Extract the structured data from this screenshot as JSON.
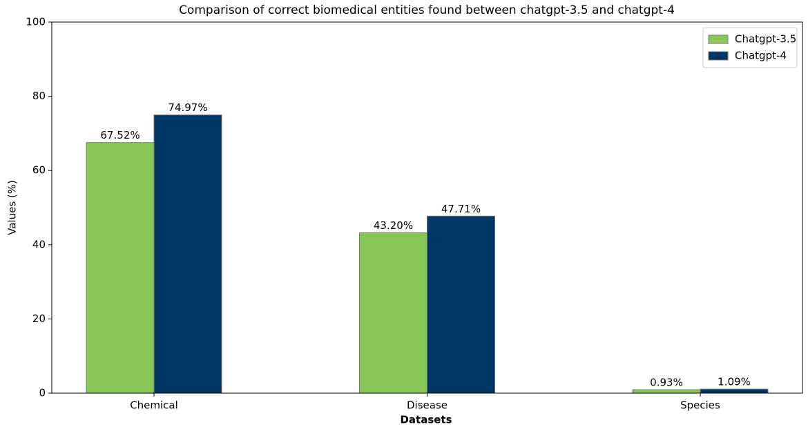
{
  "chart_data": {
    "type": "bar",
    "title": "Comparison of correct biomedical entities found between chatgpt-3.5 and chatgpt-4",
    "x_label": "Datasets",
    "y_label": "Values (%)",
    "categories": [
      "Chemical",
      "Disease",
      "Species"
    ],
    "series": [
      {
        "name": "Chatgpt-3.5",
        "color": "#88c857",
        "values": [
          67.52,
          43.2,
          0.93
        ],
        "value_labels": [
          "67.52%",
          "43.20%",
          "0.93%"
        ]
      },
      {
        "name": "Chatgpt-4",
        "color": "#003865",
        "values": [
          74.97,
          47.71,
          1.09
        ],
        "value_labels": [
          "74.97%",
          "47.71%",
          "1.09%"
        ]
      }
    ],
    "ylim": [
      0,
      100
    ],
    "yticks": [
      0,
      20,
      40,
      60,
      80,
      100
    ],
    "legend": "upper right",
    "grid": false
  }
}
